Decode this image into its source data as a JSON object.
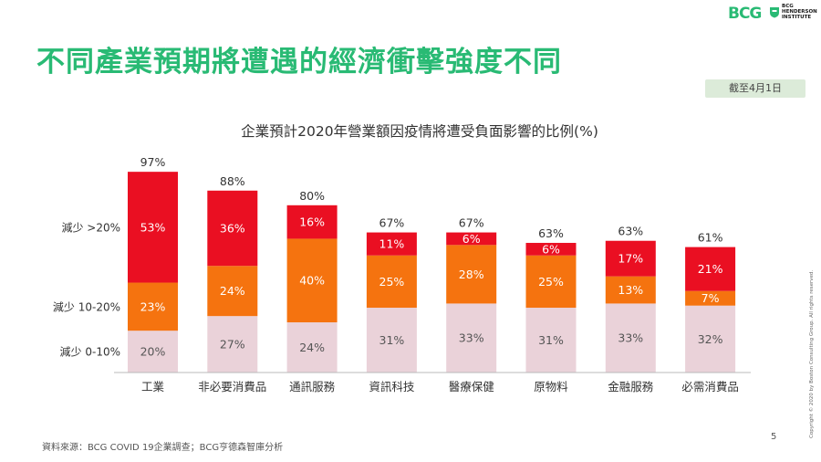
{
  "header": {
    "logo_text": "BCG",
    "institute_text": [
      "BCG",
      "HENDERSON",
      "INSTITUTE"
    ],
    "brand_color": "#29ba74"
  },
  "title": "不同產業預期將遭遇的經濟衝擊強度不同",
  "date_badge": "截至4月1日",
  "footer": {
    "source": "資料來源：BCG COVID 19企業調查；BCG亨德森智庫分析",
    "page_number": "5",
    "copyright": "Copyright © 2020 by Boston Consulting Group. All rights reserved."
  },
  "chart_data": {
    "type": "bar",
    "stacked": true,
    "title": "企業預計2020年營業額因疫情將遭受負面影響的比例(%)",
    "categories": [
      "工業",
      "非必要消費品",
      "通訊服務",
      "資訊科技",
      "醫療保健",
      "原物料",
      "金融服務",
      "必需消費品"
    ],
    "totals": [
      "97%",
      "88%",
      "80%",
      "67%",
      "67%",
      "63%",
      "63%",
      "61%"
    ],
    "series": [
      {
        "name": "減少 0-10%",
        "color": "#ead2d9",
        "values": [
          20,
          27,
          24,
          31,
          33,
          31,
          33,
          32
        ]
      },
      {
        "name": "減少 10-20%",
        "color": "#f5730f",
        "values": [
          23,
          24,
          40,
          25,
          28,
          25,
          13,
          7
        ]
      },
      {
        "name": "減少 >20%",
        "color": "#ea0f22",
        "values": [
          53,
          36,
          16,
          11,
          6,
          6,
          17,
          21
        ]
      }
    ],
    "ylim": [
      0,
      100
    ],
    "grid": false
  }
}
